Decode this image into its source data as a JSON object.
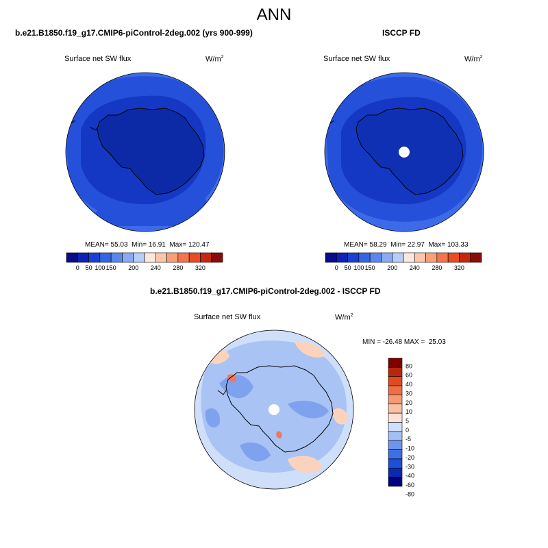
{
  "title": "ANN",
  "panels": [
    {
      "title": "b.e21.B1850.f19_g17.CMIP6-piControl-2deg.002 (yrs 900-999)",
      "variable": "Surface net SW flux",
      "units": "W/m",
      "units_sup": "2",
      "stats": {
        "mean": "55.03",
        "min": "16.91",
        "max": "120.47"
      }
    },
    {
      "title": "ISCCP FD",
      "variable": "Surface net SW flux",
      "units": "W/m",
      "units_sup": "2",
      "stats": {
        "mean": "58.29",
        "min": "22.97",
        "max": "103.33"
      }
    },
    {
      "title": "b.e21.B1850.f19_g17.CMIP6-piControl-2deg.002 - ISCCP FD",
      "variable": "Surface net SW flux",
      "units": "W/m",
      "units_sup": "2",
      "stats": {
        "min": "-26.48",
        "max": "25.03"
      }
    }
  ],
  "labels": {
    "mean": "MEAN=",
    "min": "Min=",
    "max": "Max=",
    "diff_min": "MIN =",
    "diff_max": "MAX ="
  },
  "colorbar_abs": {
    "colors": [
      "#0a0a8c",
      "#0b22b8",
      "#1a3fd6",
      "#3366e6",
      "#5a86ee",
      "#8aaaf2",
      "#b8cdf7",
      "#fde8dc",
      "#fbc7ac",
      "#f7a07a",
      "#f4744b",
      "#ec4a20",
      "#c7260d",
      "#8c0a0a"
    ],
    "tick_labels": [
      "0",
      "50",
      "100",
      "150",
      "200",
      "240",
      "280",
      "320"
    ]
  },
  "colorbar_diff": {
    "colors": [
      "#000080",
      "#0a2bb0",
      "#1f4fd8",
      "#3f6fe6",
      "#6f94ee",
      "#a4bff5",
      "#d0e0fa",
      "#fce2d4",
      "#f9c0a2",
      "#f59a72",
      "#ef6f44",
      "#e04a1e",
      "#b8260c",
      "#800000"
    ],
    "tick_labels": [
      "80",
      "60",
      "40",
      "30",
      "20",
      "10",
      "5",
      "0",
      "-5",
      "-10",
      "-20",
      "-30",
      "-40",
      "-60",
      "-80"
    ]
  },
  "map_colors": {
    "outer": "#3d6ae8",
    "mid": "#2450da",
    "inner": "#1538c4",
    "continent": "#0d2aa6",
    "continent_obs": "#1030b4",
    "diff_base": "#cfdff9",
    "diff_light": "#a9c3f4",
    "diff_mid": "#7fa2ee",
    "diff_pos": "#fbd3bd",
    "diff_red": "#f0785a",
    "pole_hole": "#ffffff"
  }
}
